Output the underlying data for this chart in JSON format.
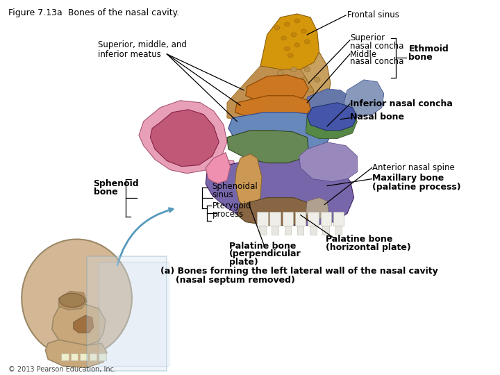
{
  "title": "Figure 7.13a  Bones of the nasal cavity.",
  "caption_line1": "(a) Bones forming the left lateral wall of the nasal cavity",
  "caption_line2": "     (nasal septum removed)",
  "copyright": "© 2013 Pearson Education, Inc.",
  "background_color": "#ffffff",
  "figsize": [
    7.2,
    5.4
  ],
  "dpi": 100
}
